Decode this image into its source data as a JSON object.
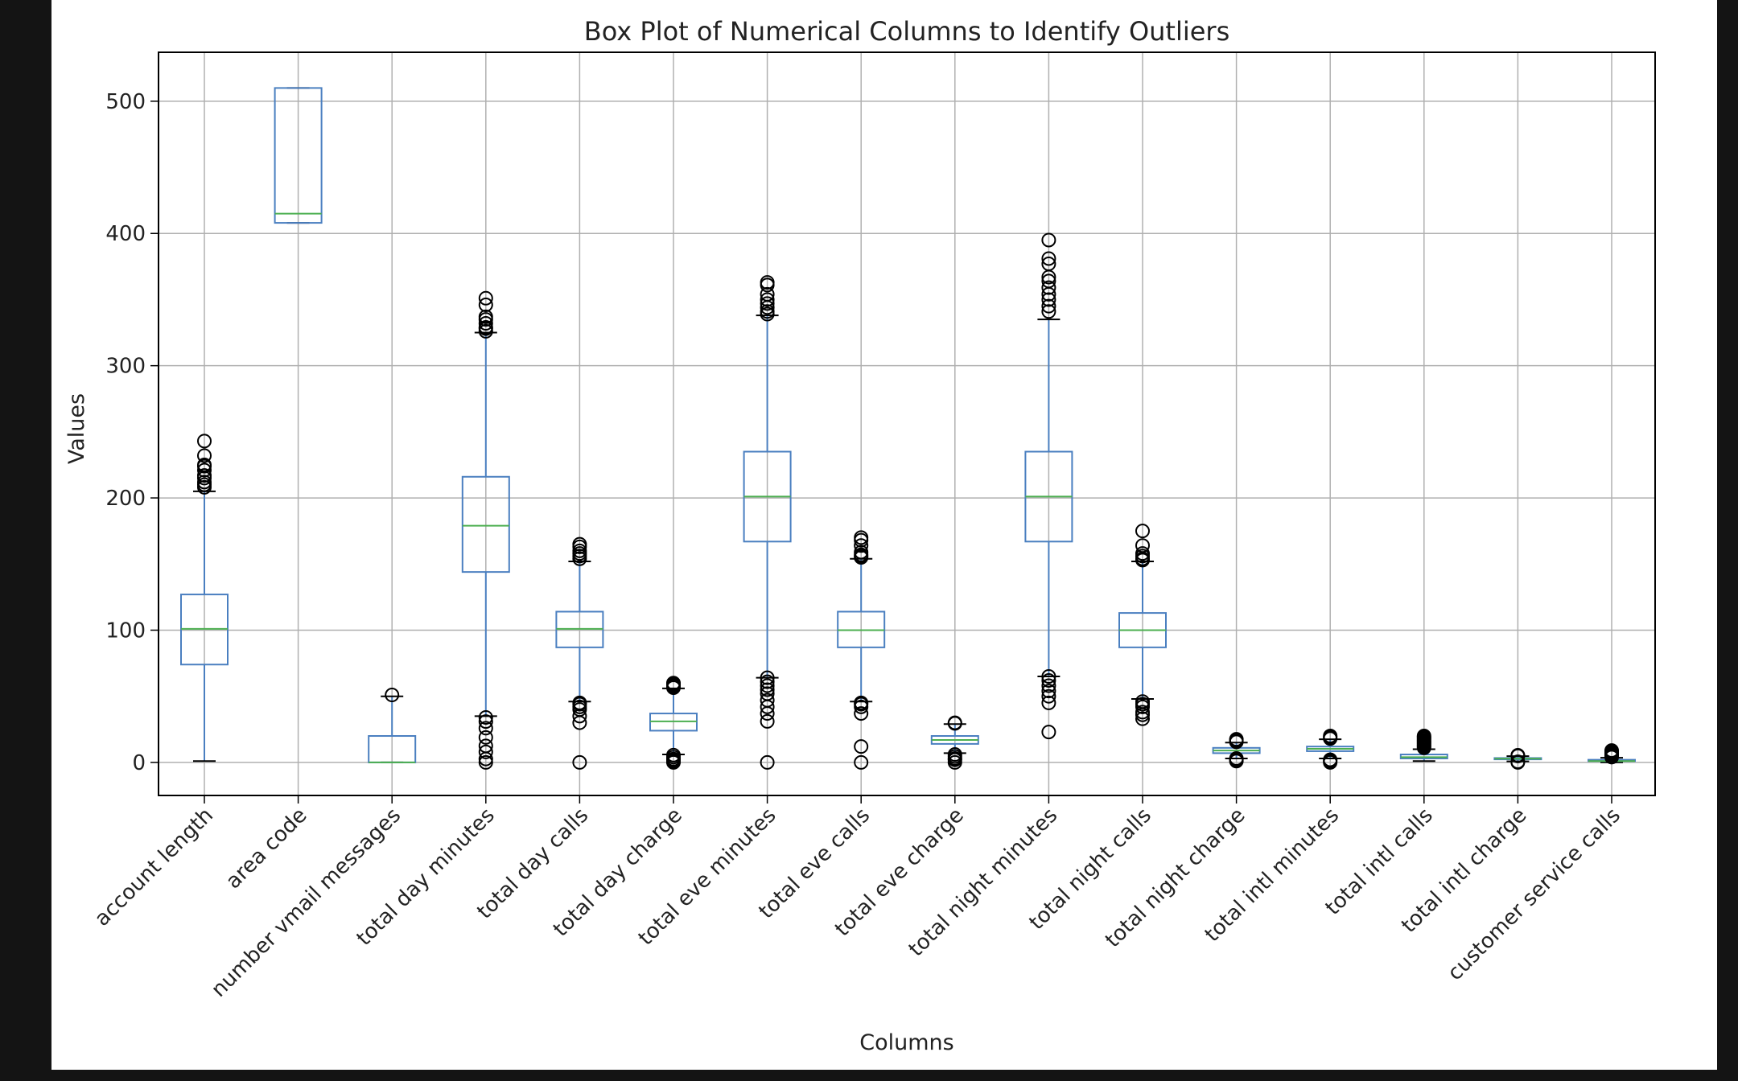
{
  "chart_data": {
    "type": "box",
    "title": "Box Plot of Numerical Columns to Identify Outliers",
    "xlabel": "Columns",
    "ylabel": "Values",
    "ylim": [
      -25,
      537
    ],
    "yticks": [
      0,
      100,
      200,
      300,
      400,
      500
    ],
    "grid": true,
    "colors": {
      "box": "#4a7fc0",
      "median": "#4caf50",
      "grid": "#b0b0b0",
      "flier": "#000000"
    },
    "categories": [
      "account length",
      "area code",
      "number vmail messages",
      "total day minutes",
      "total day calls",
      "total day charge",
      "total eve minutes",
      "total eve calls",
      "total eve charge",
      "total night minutes",
      "total night calls",
      "total night charge",
      "total intl minutes",
      "total intl calls",
      "total intl charge",
      "customer service calls"
    ],
    "boxes": [
      {
        "whisker_low": 1,
        "q1": 74,
        "median": 101,
        "q3": 127,
        "whisker_high": 205,
        "outliers": [
          208,
          210,
          212,
          215,
          217,
          221,
          224,
          225,
          232,
          243
        ]
      },
      {
        "whisker_low": 408,
        "q1": 408,
        "median": 415,
        "q3": 510,
        "whisker_high": 510,
        "outliers": []
      },
      {
        "whisker_low": 0,
        "q1": 0,
        "median": 0,
        "q3": 20,
        "whisker_high": 50,
        "outliers": [
          51
        ]
      },
      {
        "whisker_low": 35,
        "q1": 144,
        "median": 179,
        "q3": 216,
        "whisker_high": 325,
        "outliers": [
          0,
          2.6,
          7.9,
          12.5,
          18.9,
          25.9,
          30.9,
          34,
          326,
          328,
          329,
          332,
          335,
          337,
          346,
          351
        ]
      },
      {
        "whisker_low": 46,
        "q1": 87,
        "median": 101,
        "q3": 114,
        "whisker_high": 152,
        "outliers": [
          0,
          30,
          35,
          40,
          42,
          44,
          45,
          154,
          156,
          158,
          160,
          163,
          165
        ]
      },
      {
        "whisker_low": 6,
        "q1": 24,
        "median": 31,
        "q3": 37,
        "whisker_high": 56,
        "outliers": [
          0,
          0.5,
          1.5,
          2.5,
          4,
          5.5,
          56.5,
          57.5,
          58.5,
          59.5,
          60
        ]
      },
      {
        "whisker_low": 64,
        "q1": 167,
        "median": 201,
        "q3": 235,
        "whisker_high": 338,
        "outliers": [
          0,
          31,
          37,
          42,
          47,
          52,
          55,
          58,
          61,
          64,
          339,
          341,
          344,
          347,
          350,
          354,
          361,
          363
        ]
      },
      {
        "whisker_low": 46,
        "q1": 87,
        "median": 100,
        "q3": 114,
        "whisker_high": 154,
        "outliers": [
          0,
          12,
          37,
          42,
          44,
          45,
          155,
          156,
          157,
          159,
          164,
          168,
          170
        ]
      },
      {
        "whisker_low": 7,
        "q1": 14,
        "median": 17,
        "q3": 20,
        "whisker_high": 29,
        "outliers": [
          0,
          2,
          3,
          4.5,
          6,
          29.5,
          30
        ]
      },
      {
        "whisker_low": 65,
        "q1": 167,
        "median": 201,
        "q3": 235,
        "whisker_high": 335,
        "outliers": [
          23,
          45,
          50,
          54,
          58,
          62,
          65,
          341,
          345,
          350,
          354,
          359,
          364,
          367,
          377,
          381,
          395
        ]
      },
      {
        "whisker_low": 48,
        "q1": 87,
        "median": 100,
        "q3": 113,
        "whisker_high": 152,
        "outliers": [
          33,
          36,
          38,
          42,
          44,
          46,
          153,
          154,
          156,
          158,
          164,
          175
        ]
      },
      {
        "whisker_low": 3,
        "q1": 7,
        "median": 9,
        "q3": 11,
        "whisker_high": 15,
        "outliers": [
          1,
          2,
          3,
          15.5,
          16.5,
          17.5
        ]
      },
      {
        "whisker_low": 3,
        "q1": 8.5,
        "median": 10.3,
        "q3": 12,
        "whisker_high": 17.5,
        "outliers": [
          0,
          1,
          2,
          18,
          19,
          20
        ]
      },
      {
        "whisker_low": 1,
        "q1": 3,
        "median": 4,
        "q3": 6,
        "whisker_high": 10,
        "outliers": [
          11,
          12,
          13,
          14,
          15,
          16,
          17,
          18,
          19,
          20
        ]
      },
      {
        "whisker_low": 0.8,
        "q1": 2.3,
        "median": 2.8,
        "q3": 3.3,
        "whisker_high": 4.7,
        "outliers": [
          0,
          0.5,
          4.9,
          5.2,
          5.4
        ]
      },
      {
        "whisker_low": 0,
        "q1": 1,
        "median": 1,
        "q3": 2,
        "whisker_high": 3.5,
        "outliers": [
          4,
          5,
          6,
          7,
          8,
          9
        ]
      }
    ]
  }
}
